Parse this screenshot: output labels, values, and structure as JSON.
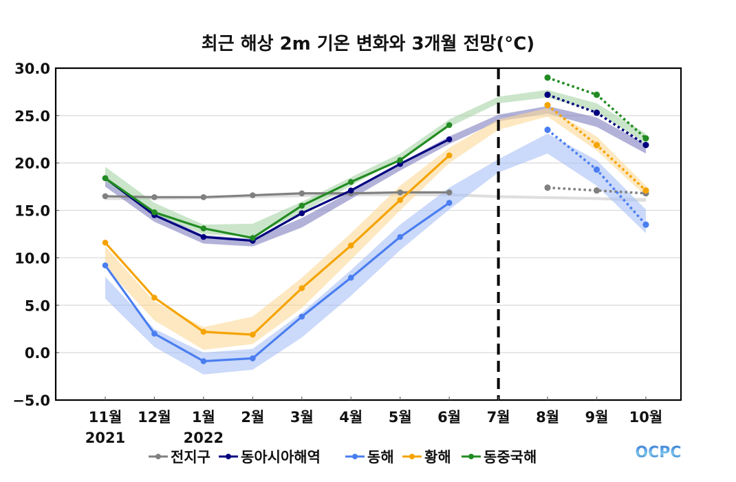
{
  "chart_data": {
    "type": "line",
    "title": "최근 해상 2m 기온 변화와 3개월 전망(°C)",
    "xlabel": "",
    "ylabel": "",
    "ylim": [
      -5.0,
      30.0
    ],
    "yticks": [
      "30.0",
      "25.0",
      "20.0",
      "15.0",
      "10.0",
      "5.0",
      "0.0",
      "−5.0"
    ],
    "ytick_values": [
      30,
      25,
      20,
      15,
      10,
      5,
      0,
      -5
    ],
    "categories": [
      "11월",
      "12월",
      "1월",
      "2월",
      "3월",
      "4월",
      "5월",
      "6월",
      "7월",
      "8월",
      "9월",
      "10월"
    ],
    "year_labels": [
      {
        "index": 0,
        "label": "2021"
      },
      {
        "index": 2,
        "label": "2022"
      }
    ],
    "divider_index": 8,
    "grid": true,
    "legend_position": "bottom",
    "series": [
      {
        "name": "전지구",
        "color": "#808080",
        "band_color": "#c8c8c8",
        "observed": [
          16.5,
          16.4,
          16.4,
          16.6,
          16.8,
          16.8,
          16.9,
          16.9
        ],
        "forecast": [
          17.4,
          17.1,
          16.8
        ],
        "band_low": [
          16.1,
          16.1,
          16.2,
          16.3,
          16.4,
          16.5,
          16.5,
          16.5,
          16.3,
          16.2,
          16.1,
          15.9
        ],
        "band_high": [
          16.4,
          16.4,
          16.5,
          16.6,
          16.7,
          16.8,
          16.8,
          16.8,
          16.6,
          16.5,
          16.4,
          16.3
        ]
      },
      {
        "name": "동아시아해역",
        "color": "#00007f",
        "band_color": "#7f7fbf",
        "observed": [
          18.4,
          14.5,
          12.2,
          11.8,
          14.7,
          17.1,
          19.9,
          22.5
        ],
        "forecast": [
          27.2,
          25.3,
          21.9
        ],
        "band_low": [
          17.5,
          13.8,
          11.5,
          11.2,
          13.2,
          16.2,
          19.2,
          22.0,
          24.4,
          25.2,
          23.8,
          21.0
        ],
        "band_high": [
          18.3,
          14.8,
          12.4,
          12.0,
          14.2,
          17.0,
          20.0,
          22.8,
          25.1,
          26.0,
          24.8,
          22.0
        ]
      },
      {
        "name": "동해",
        "color": "#4a7ef0",
        "band_color": "#a8bff7",
        "observed": [
          9.2,
          2.0,
          -0.9,
          -0.6,
          3.8,
          7.9,
          12.2,
          15.8
        ],
        "forecast": [
          23.5,
          19.3,
          13.5
        ],
        "band_low": [
          5.7,
          0.6,
          -2.3,
          -1.8,
          1.6,
          6.0,
          10.8,
          15.1,
          19.0,
          21.0,
          17.6,
          12.6
        ],
        "band_high": [
          8.0,
          2.5,
          0.0,
          0.4,
          4.2,
          8.7,
          13.5,
          17.4,
          20.4,
          23.1,
          20.3,
          15.1
        ]
      },
      {
        "name": "황해",
        "color": "#f5a300",
        "band_color": "#fcd998",
        "observed": [
          11.6,
          5.8,
          2.2,
          1.9,
          6.8,
          11.3,
          16.1,
          20.8
        ],
        "forecast": [
          26.1,
          21.9,
          17.1
        ],
        "band_low": [
          9.0,
          3.4,
          0.3,
          0.9,
          4.7,
          9.8,
          15.0,
          20.0,
          23.5,
          24.9,
          21.3,
          16.5
        ],
        "band_high": [
          11.2,
          5.4,
          2.7,
          3.8,
          7.9,
          12.6,
          17.6,
          21.6,
          24.6,
          25.8,
          22.8,
          17.6
        ]
      },
      {
        "name": "동중국해",
        "color": "#228b22",
        "band_color": "#a6d4a6",
        "observed": [
          18.4,
          14.8,
          13.1,
          12.1,
          15.5,
          18.0,
          20.3,
          24.0
        ],
        "forecast": [
          29.0,
          27.2,
          22.6
        ],
        "band_low": [
          18.0,
          14.6,
          12.5,
          12.2,
          14.8,
          17.6,
          20.4,
          23.8,
          26.3,
          26.9,
          25.4,
          22.0
        ],
        "band_high": [
          19.6,
          15.8,
          13.5,
          13.6,
          15.9,
          18.5,
          21.0,
          24.6,
          27.0,
          27.7,
          26.3,
          23.1
        ]
      }
    ]
  },
  "logo": {
    "text": "OCPC",
    "color_top": "#2a6fd1",
    "color_bottom": "#7fc6ee"
  }
}
